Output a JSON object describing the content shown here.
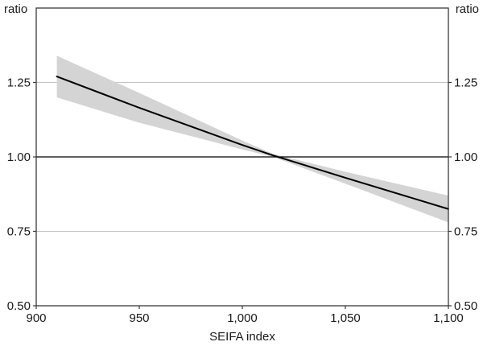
{
  "chart_data": {
    "type": "line",
    "title": "",
    "xlabel": "SEIFA index",
    "ylabel_left": "ratio",
    "ylabel_right": "ratio",
    "xlim": [
      900,
      1100
    ],
    "ylim": [
      0.5,
      1.5
    ],
    "xticks": [
      900,
      950,
      1000,
      1050,
      1100
    ],
    "xtick_labels": [
      "900",
      "950",
      "1,000",
      "1,050",
      "1,100"
    ],
    "yticks": [
      0.5,
      0.75,
      1.0,
      1.25
    ],
    "ytick_labels": [
      "0.50",
      "0.75",
      "1.00",
      "1.25"
    ],
    "reference_line_y": 1.0,
    "grid": "horizontal-only",
    "legend": "none",
    "series": [
      {
        "name": "estimated-ratio-line",
        "x": [
          910,
          950,
          1000,
          1015,
          1050,
          1100
        ],
        "y": [
          1.27,
          1.165,
          1.04,
          1.005,
          0.93,
          0.825
        ],
        "band_upper": [
          1.34,
          1.215,
          1.055,
          1.01,
          0.95,
          0.87
        ],
        "band_lower": [
          1.2,
          1.115,
          1.025,
          1.0,
          0.91,
          0.78
        ]
      }
    ],
    "colors": {
      "line": "#000000",
      "band": "#d4d4d4",
      "gridline": "#c4c4c4",
      "reference_line": "#000000",
      "frame": "#3a3a3a",
      "text": "#1a1a1a"
    }
  }
}
